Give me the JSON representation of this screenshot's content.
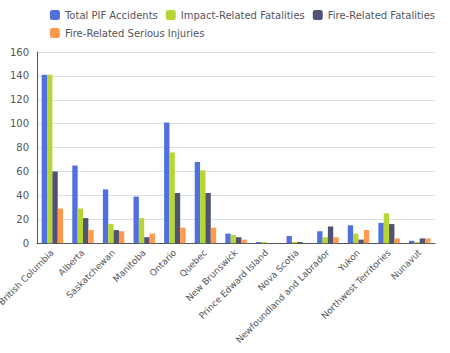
{
  "chart_data": {
    "type": "bar",
    "categories": [
      "British Columbia",
      "Alberta",
      "Saskatchewan",
      "Manitoba",
      "Ontario",
      "Quebec",
      "New Brunswick",
      "Prince Edward Island",
      "Nova Scotia",
      "Newfoundland and Labrador",
      "Yukon",
      "Northwest Territories",
      "Nunavut"
    ],
    "series": [
      {
        "name": "Total PIF Accidents",
        "values": [
          141,
          65,
          45,
          39,
          101,
          68,
          8,
          1,
          6,
          10,
          15,
          17,
          2
        ]
      },
      {
        "name": "Impact-Related Fatalities",
        "values": [
          141,
          29,
          16,
          21,
          76,
          61,
          7,
          1,
          1,
          5,
          8,
          25,
          1
        ]
      },
      {
        "name": "Fire-Related Fatalities",
        "values": [
          60,
          21,
          11,
          5,
          42,
          42,
          5,
          0,
          1,
          14,
          3,
          16,
          4
        ]
      },
      {
        "name": "Fire-Related Serious Injuries",
        "values": [
          29,
          11,
          10,
          8,
          13,
          13,
          3,
          0,
          0,
          5,
          11,
          4,
          4
        ]
      }
    ],
    "ylim": [
      0,
      160
    ],
    "yticks": [
      0,
      20,
      40,
      60,
      80,
      100,
      120,
      140,
      160
    ],
    "grid": true,
    "legend": "upper right"
  }
}
